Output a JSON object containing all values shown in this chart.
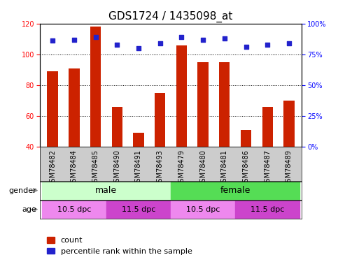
{
  "title": "GDS1724 / 1435098_at",
  "samples": [
    "GSM78482",
    "GSM78484",
    "GSM78485",
    "GSM78490",
    "GSM78491",
    "GSM78493",
    "GSM78479",
    "GSM78480",
    "GSM78481",
    "GSM78486",
    "GSM78487",
    "GSM78489"
  ],
  "counts": [
    89,
    91,
    118,
    66,
    49,
    75,
    106,
    95,
    95,
    51,
    66,
    70
  ],
  "percentiles": [
    86,
    87,
    89,
    83,
    80,
    84,
    89,
    87,
    88,
    81,
    83,
    84
  ],
  "ylim_left": [
    40,
    120
  ],
  "ylim_right": [
    0,
    100
  ],
  "yticks_left": [
    40,
    60,
    80,
    100,
    120
  ],
  "yticks_right": [
    0,
    25,
    50,
    75,
    100
  ],
  "ytick_labels_right": [
    "0%",
    "25%",
    "50%",
    "75%",
    "100%"
  ],
  "bar_color": "#cc2200",
  "dot_color": "#2222cc",
  "bar_width": 0.5,
  "gender_color_male": "#ccffcc",
  "gender_color_female": "#55dd55",
  "age_color_light": "#ee88ee",
  "age_color_dark": "#cc44cc",
  "xtick_bg_color": "#cccccc",
  "background_color": "#ffffff",
  "title_fontsize": 11,
  "tick_fontsize": 7,
  "legend_fontsize": 8,
  "num_samples": 12
}
